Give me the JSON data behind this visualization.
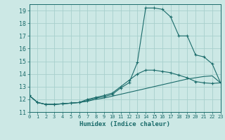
{
  "xlabel": "Humidex (Indice chaleur)",
  "bg_color": "#cce8e5",
  "grid_color": "#a8d0cc",
  "line_color": "#1a6b6a",
  "xlim": [
    0,
    23
  ],
  "ylim": [
    11,
    19.5
  ],
  "yticks": [
    11,
    12,
    13,
    14,
    15,
    16,
    17,
    18,
    19
  ],
  "xticks": [
    0,
    1,
    2,
    3,
    4,
    5,
    6,
    7,
    8,
    9,
    10,
    11,
    12,
    13,
    14,
    15,
    16,
    17,
    18,
    19,
    20,
    21,
    22,
    23
  ],
  "curve_top_x": [
    0,
    1,
    2,
    3,
    4,
    5,
    6,
    7,
    8,
    9,
    10,
    11,
    12,
    13,
    14,
    15,
    16,
    17,
    18,
    19,
    20,
    21,
    22,
    23
  ],
  "curve_top_y": [
    12.3,
    11.75,
    11.6,
    11.6,
    11.65,
    11.7,
    11.75,
    11.9,
    12.1,
    12.2,
    12.4,
    12.9,
    13.3,
    14.9,
    19.2,
    19.2,
    19.1,
    18.5,
    17.0,
    17.0,
    15.5,
    15.35,
    14.8,
    13.3
  ],
  "curve_mid_x": [
    0,
    1,
    2,
    3,
    4,
    5,
    6,
    7,
    8,
    9,
    10,
    11,
    12,
    13,
    14,
    15,
    16,
    17,
    18,
    19,
    20,
    21,
    22,
    23
  ],
  "curve_mid_y": [
    12.3,
    11.75,
    11.6,
    11.6,
    11.65,
    11.7,
    11.75,
    12.0,
    12.15,
    12.3,
    12.5,
    13.0,
    13.5,
    14.0,
    14.3,
    14.3,
    14.2,
    14.1,
    13.9,
    13.7,
    13.4,
    13.3,
    13.25,
    13.3
  ],
  "curve_bot_x": [
    0,
    1,
    2,
    3,
    4,
    5,
    6,
    7,
    8,
    9,
    10,
    11,
    12,
    13,
    14,
    15,
    16,
    17,
    18,
    19,
    20,
    21,
    22,
    23
  ],
  "curve_bot_y": [
    12.3,
    11.75,
    11.6,
    11.6,
    11.65,
    11.7,
    11.75,
    11.85,
    12.0,
    12.1,
    12.25,
    12.4,
    12.55,
    12.7,
    12.85,
    13.0,
    13.15,
    13.3,
    13.45,
    13.6,
    13.7,
    13.8,
    13.85,
    13.3
  ]
}
